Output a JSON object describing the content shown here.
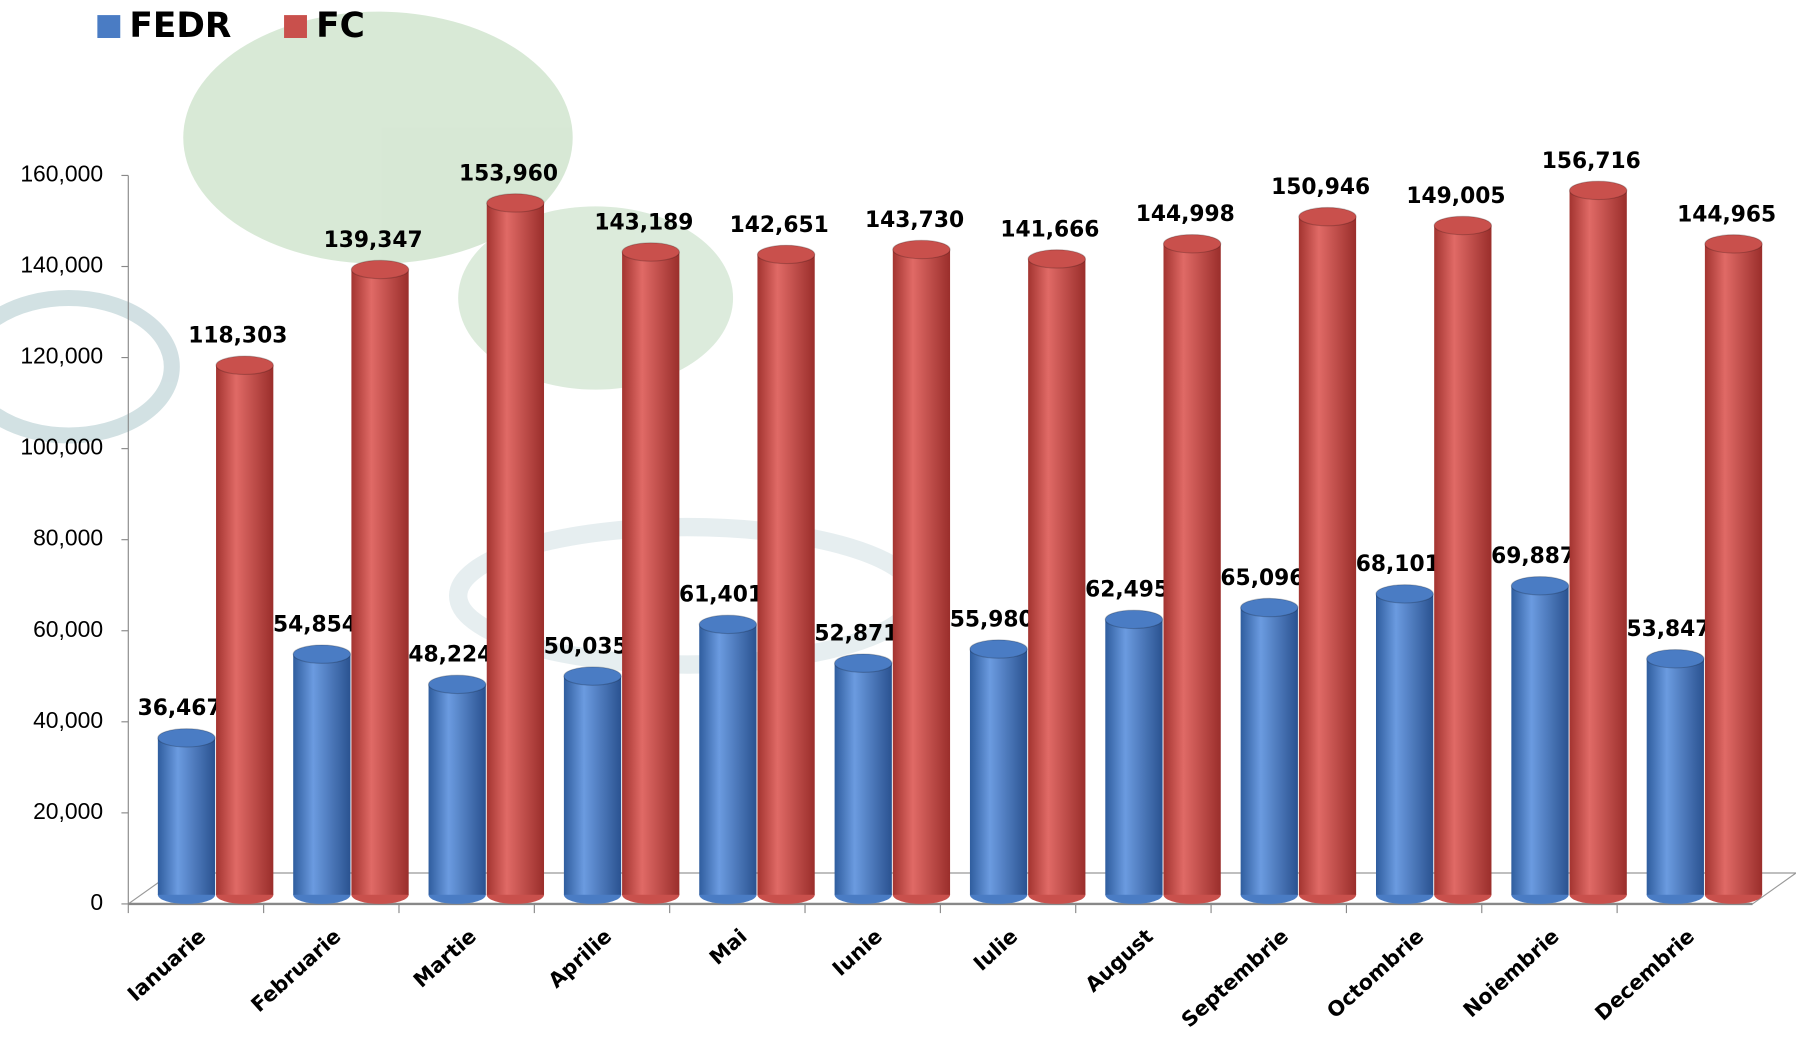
{
  "chart_data": {
    "type": "bar",
    "categories": [
      "Ianuarie",
      "Februarie",
      "Martie",
      "Aprilie",
      "Mai",
      "Iunie",
      "Iulie",
      "August",
      "Septembrie",
      "Octombrie",
      "Noiembrie",
      "Decembrie"
    ],
    "series": [
      {
        "name": "FEDR",
        "color": "#4a7cc4",
        "values": [
          36467,
          54854,
          48224,
          50035,
          61401,
          52871,
          55980,
          62495,
          65096,
          68101,
          69887,
          53847
        ],
        "value_labels": [
          "36,467",
          "54,854",
          "48,224",
          "50,035",
          "61,401",
          "52,871",
          "55,980",
          "62,495",
          "65,096",
          "68,101",
          "69,887",
          "53,847"
        ]
      },
      {
        "name": "FC",
        "color": "#c9504c",
        "values": [
          118303,
          139347,
          153960,
          143189,
          142651,
          143730,
          141666,
          144998,
          150946,
          149005,
          156716,
          144965
        ],
        "value_labels": [
          "118,303",
          "139,347",
          "153,960",
          "143,189",
          "142,651",
          "143,730",
          "141,666",
          "144,998",
          "150,946",
          "149,005",
          "156,716",
          "144,965"
        ]
      }
    ],
    "ylim": [
      0,
      160000
    ],
    "yticks": [
      0,
      {
        "value": 20000,
        "label": "20,000"
      },
      {
        "value": 40000,
        "label": "40,000"
      },
      {
        "value": 60000,
        "label": "60,000"
      },
      {
        "value": 80000,
        "label": "80,000"
      },
      {
        "value": 100000,
        "label": "100,000"
      },
      {
        "value": 120000,
        "label": "120,000"
      },
      {
        "value": 140000,
        "label": "140,000"
      },
      {
        "value": 160000,
        "label": "160,000"
      }
    ],
    "legend": "top-left"
  }
}
